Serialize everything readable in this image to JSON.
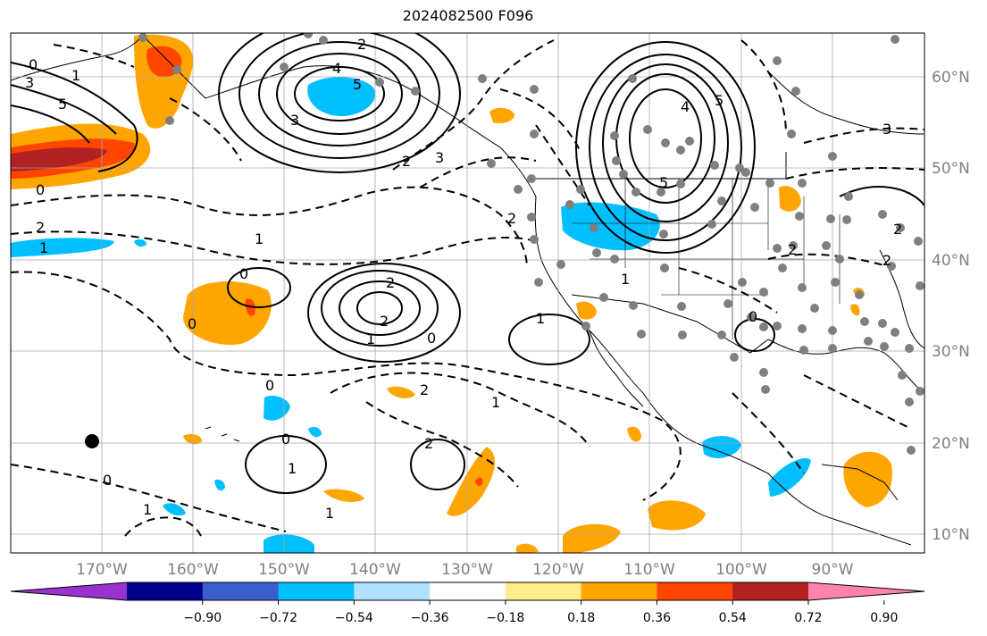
{
  "title": "2024082500 F096",
  "map": {
    "lon_labels": [
      "170°W",
      "160°W",
      "150°W",
      "140°W",
      "130°W",
      "120°W",
      "110°W",
      "100°W",
      "90°W"
    ],
    "lat_labels": [
      "60°N",
      "50°N",
      "40°N",
      "30°N",
      "20°N",
      "10°N"
    ],
    "contour_labels": [
      "0",
      "1",
      "3",
      "5",
      "2",
      "4",
      "5",
      "3",
      "0",
      "1",
      "2",
      "2",
      "3",
      "1",
      "1",
      "0",
      "2",
      "2",
      "1",
      "0",
      "2",
      "0",
      "1",
      "0",
      "1",
      "0",
      "2",
      "1",
      "1",
      "0",
      "0",
      "2",
      "2",
      "5",
      "4",
      "5",
      "3",
      "2",
      "1",
      "2"
    ]
  },
  "colorbar": {
    "ticks": [
      "−0.90",
      "−0.72",
      "−0.54",
      "−0.36",
      "−0.18",
      "0.18",
      "0.36",
      "0.54",
      "0.72",
      "0.90"
    ],
    "colors": [
      "#9a32cd",
      "#00008b",
      "#3a5fcd",
      "#00bfff",
      "#b0e2ff",
      "#ffffff",
      "#ffec8b",
      "#ffa500",
      "#ff4500",
      "#b22222",
      "#ff83aa"
    ]
  }
}
